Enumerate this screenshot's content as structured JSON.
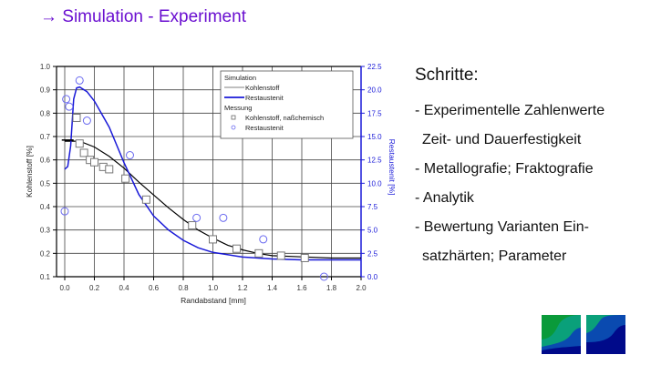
{
  "slide": {
    "title": "→ Simulation - Experiment"
  },
  "steps": {
    "heading": "Schritte:",
    "lines": [
      "- Experimentelle Zahlenwerte",
      "Zeit- und Dauerfestigkeit",
      "- Metallografie; Fraktografie",
      "- Analytik",
      "- Bewertung Varianten Ein-",
      "satzhärten; Parameter"
    ]
  },
  "colors": {
    "title": "#6a0fd0",
    "carbon_series": "#000000",
    "austenite_series": "#1a1ad8",
    "axis_right": "#1a1ad8",
    "logo_green": "#0a9a3a",
    "logo_teal": "#0aa07a",
    "logo_blue": "#0a4ab0",
    "logo_navy": "#000a8a"
  },
  "chart_data": {
    "type": "line",
    "title": "",
    "xlabel": "Randabstand [mm]",
    "ylabel": "Kohlenstoff [%]",
    "y2label": "Restaustenit [%]",
    "xlim": [
      0.0,
      2.0
    ],
    "ylim": [
      0.1,
      1.0
    ],
    "y2lim": [
      0.0,
      22.5
    ],
    "x_ticks": [
      "0.0",
      "0.2",
      "0.4",
      "0.6",
      "0.8",
      "1.0",
      "1.2",
      "1.4",
      "1.6",
      "1.8",
      "2.0"
    ],
    "y_ticks": [
      "0.1",
      "0.2",
      "0.3",
      "0.4",
      "0.5",
      "0.6",
      "0.7",
      "0.8",
      "0.9",
      "1.0"
    ],
    "y2_ticks": [
      "0.0",
      "2.5",
      "5.0",
      "7.5",
      "10.0",
      "12.5",
      "15.0",
      "17.5",
      "20.0",
      "22.5"
    ],
    "grid": true,
    "legend": {
      "position": "upper-right",
      "groups": [
        {
          "title": "Simulation",
          "entries": [
            "Kohlenstoff",
            "Restaustenit"
          ]
        },
        {
          "title": "Messung",
          "entries": [
            "Kohlenstoff, naßchemisch",
            "Restaustenit"
          ]
        }
      ]
    },
    "series": [
      {
        "name": "Simulation Kohlenstoff",
        "axis": "left",
        "style": "line",
        "x": [
          0.0,
          0.05,
          0.1,
          0.2,
          0.3,
          0.4,
          0.5,
          0.6,
          0.7,
          0.8,
          0.9,
          1.0,
          1.1,
          1.2,
          1.3,
          1.4,
          1.6,
          1.8,
          2.0
        ],
        "values": [
          0.68,
          0.68,
          0.68,
          0.655,
          0.615,
          0.565,
          0.505,
          0.45,
          0.395,
          0.345,
          0.3,
          0.265,
          0.235,
          0.215,
          0.2,
          0.19,
          0.185,
          0.18,
          0.18
        ]
      },
      {
        "name": "Simulation Restaustenit",
        "axis": "right",
        "style": "line",
        "x": [
          0.0,
          0.02,
          0.04,
          0.06,
          0.08,
          0.1,
          0.15,
          0.2,
          0.3,
          0.4,
          0.5,
          0.6,
          0.7,
          0.8,
          0.9,
          1.0,
          1.2,
          1.4,
          1.6,
          1.8,
          2.0
        ],
        "values": [
          11.5,
          11.8,
          14.0,
          19.0,
          20.2,
          20.3,
          19.8,
          18.8,
          16.0,
          12.2,
          8.8,
          6.5,
          5.0,
          3.9,
          3.1,
          2.6,
          2.1,
          1.9,
          1.8,
          1.8,
          1.8
        ]
      },
      {
        "name": "Messung Kohlenstoff, naßchemisch",
        "axis": "left",
        "style": "square-markers",
        "x": [
          0.08,
          0.1,
          0.13,
          0.17,
          0.2,
          0.26,
          0.3,
          0.41,
          0.55,
          0.86,
          1.0,
          1.16,
          1.31,
          1.46,
          1.62
        ],
        "values": [
          0.78,
          0.67,
          0.63,
          0.6,
          0.59,
          0.57,
          0.56,
          0.52,
          0.43,
          0.32,
          0.26,
          0.22,
          0.2,
          0.19,
          0.18
        ]
      },
      {
        "name": "Messung Restaustenit",
        "axis": "right",
        "style": "circle-markers",
        "x": [
          0.0,
          0.01,
          0.03,
          0.1,
          0.15,
          0.44,
          0.89,
          1.07,
          1.34,
          1.75
        ],
        "values": [
          7.0,
          19.0,
          18.2,
          21.0,
          16.7,
          13.0,
          6.3,
          6.3,
          4.0,
          0.0
        ]
      }
    ]
  }
}
